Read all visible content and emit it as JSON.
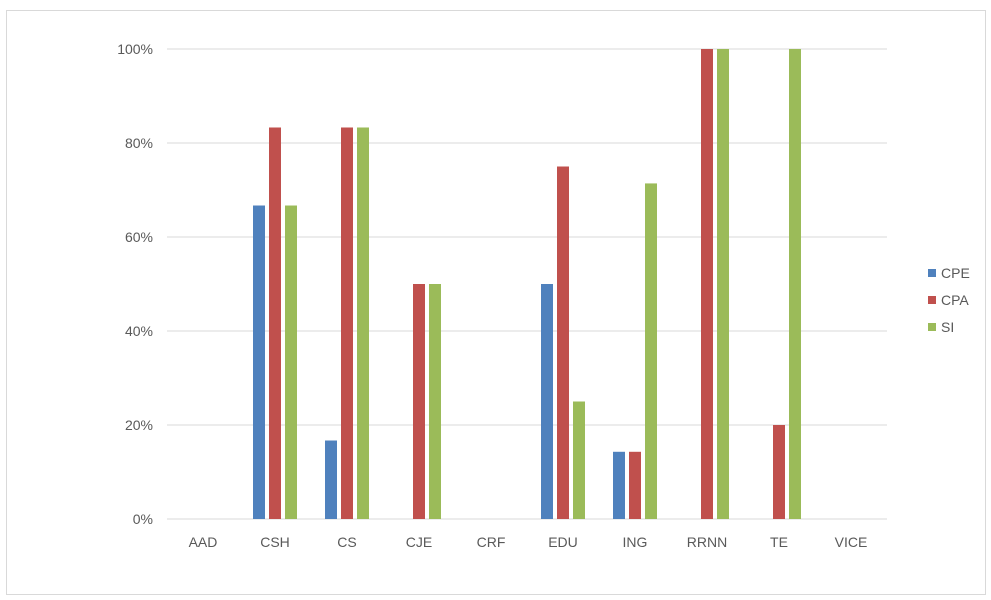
{
  "chart_data": {
    "type": "bar",
    "categories": [
      "AAD",
      "CSH",
      "CS",
      "CJE",
      "CRF",
      "EDU",
      "ING",
      "RRNN",
      "TE",
      "VICE"
    ],
    "series": [
      {
        "name": "CPE",
        "color": "#4f81bd",
        "values": [
          0,
          66.7,
          16.7,
          0,
          0,
          50,
          14.3,
          0,
          0,
          0
        ]
      },
      {
        "name": "CPA",
        "color": "#c0504d",
        "values": [
          0,
          83.3,
          83.3,
          50,
          0,
          75,
          14.3,
          100,
          20,
          0
        ]
      },
      {
        "name": "SI",
        "color": "#9bbb59",
        "values": [
          0,
          66.7,
          83.3,
          50,
          0,
          25,
          71.4,
          100,
          100,
          0
        ]
      }
    ],
    "y_ticks": [
      "0%",
      "20%",
      "40%",
      "60%",
      "80%",
      "100%"
    ],
    "ylim": [
      0,
      100
    ],
    "y_unit": "%",
    "grid": true,
    "gridline_color": "#d9d9d9",
    "text_color": "#595959",
    "legend_position": "right"
  }
}
